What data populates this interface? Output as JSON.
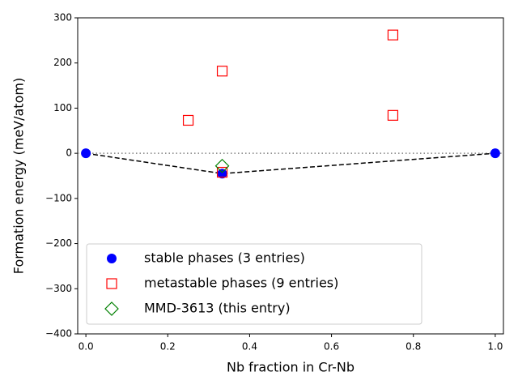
{
  "chart_data": {
    "type": "scatter",
    "xlabel": "Nb fraction in Cr-Nb",
    "ylabel": "Formation energy (meV/atom)",
    "xlim": [
      -0.02,
      1.02
    ],
    "ylim": [
      -400,
      300
    ],
    "xticks": [
      {
        "value": 0,
        "label": "0.0"
      },
      {
        "value": 0.2,
        "label": "0.2"
      },
      {
        "value": 0.4,
        "label": "0.4"
      },
      {
        "value": 0.6,
        "label": "0.6"
      },
      {
        "value": 0.8,
        "label": "0.8"
      },
      {
        "value": 1,
        "label": "1.0"
      }
    ],
    "yticks": [
      {
        "value": -400,
        "label": "−400"
      },
      {
        "value": -300,
        "label": "−300"
      },
      {
        "value": -200,
        "label": "−200"
      },
      {
        "value": -100,
        "label": "−100"
      },
      0,
      100,
      200,
      300
    ],
    "reference_line": 0,
    "hull": {
      "color": "#000000",
      "x": [
        0,
        0.333,
        1
      ],
      "values": [
        0,
        -45,
        0
      ]
    },
    "series": [
      {
        "name": "stable phases (3 entries)",
        "color": "#0000ff",
        "marker": "circle",
        "x": [
          0,
          0.333,
          1
        ],
        "values": [
          0,
          -45,
          0
        ]
      },
      {
        "name": "metastable phases (9 entries)",
        "color": "#ff0000",
        "marker": "square",
        "x": [
          0.25,
          0.333,
          0.333,
          0.75,
          0.75
        ],
        "values": [
          73,
          182,
          -42,
          262,
          84
        ]
      },
      {
        "name": "MMD-3613 (this entry)",
        "color": "#008000",
        "marker": "diamond",
        "x": [
          0.333
        ],
        "values": [
          -28
        ]
      }
    ]
  }
}
